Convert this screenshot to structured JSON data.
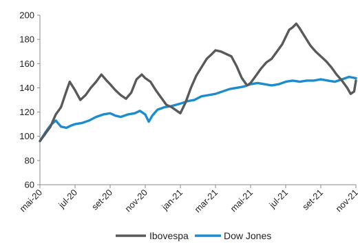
{
  "chart_data": {
    "type": "line",
    "title": "",
    "xlabel": "",
    "ylabel": "",
    "ylim": [
      60,
      200
    ],
    "yticks": [
      "60",
      "80",
      "100",
      "120",
      "140",
      "160",
      "180",
      "200"
    ],
    "xticks": [
      "mai-20",
      "jul-20",
      "set-20",
      "nov-20",
      "jan-21",
      "mar-21",
      "mai-21",
      "jul-21",
      "set-21",
      "nov-21"
    ],
    "grid": false,
    "legend": "bottom",
    "series": [
      {
        "name": "Ibovespa",
        "color": "#595959",
        "points": [
          [
            0,
            96
          ],
          [
            0.15,
            102
          ],
          [
            0.3,
            108
          ],
          [
            0.45,
            118
          ],
          [
            0.6,
            124
          ],
          [
            0.75,
            137
          ],
          [
            0.85,
            145
          ],
          [
            1.0,
            138
          ],
          [
            1.15,
            130
          ],
          [
            1.3,
            134
          ],
          [
            1.45,
            140
          ],
          [
            1.6,
            145
          ],
          [
            1.75,
            151
          ],
          [
            1.9,
            146
          ],
          [
            2.0,
            143
          ],
          [
            2.15,
            138
          ],
          [
            2.3,
            134
          ],
          [
            2.45,
            131
          ],
          [
            2.6,
            136
          ],
          [
            2.75,
            147
          ],
          [
            2.9,
            151
          ],
          [
            3.0,
            148
          ],
          [
            3.15,
            145
          ],
          [
            3.3,
            138
          ],
          [
            3.45,
            132
          ],
          [
            3.6,
            126
          ],
          [
            3.75,
            124
          ],
          [
            3.9,
            121
          ],
          [
            4.0,
            119
          ],
          [
            4.15,
            128
          ],
          [
            4.3,
            140
          ],
          [
            4.45,
            150
          ],
          [
            4.6,
            157
          ],
          [
            4.75,
            164
          ],
          [
            4.9,
            168
          ],
          [
            5.0,
            171
          ],
          [
            5.15,
            170
          ],
          [
            5.3,
            168
          ],
          [
            5.45,
            166
          ],
          [
            5.6,
            158
          ],
          [
            5.75,
            148
          ],
          [
            5.9,
            142
          ],
          [
            6.0,
            144
          ],
          [
            6.15,
            150
          ],
          [
            6.3,
            156
          ],
          [
            6.45,
            161
          ],
          [
            6.6,
            164
          ],
          [
            6.75,
            170
          ],
          [
            6.9,
            176
          ],
          [
            7.0,
            182
          ],
          [
            7.1,
            188
          ],
          [
            7.2,
            190
          ],
          [
            7.3,
            193
          ],
          [
            7.4,
            189
          ],
          [
            7.55,
            182
          ],
          [
            7.7,
            175
          ],
          [
            7.85,
            170
          ],
          [
            8.0,
            166
          ],
          [
            8.15,
            162
          ],
          [
            8.3,
            157
          ],
          [
            8.45,
            151
          ],
          [
            8.6,
            146
          ],
          [
            8.75,
            140
          ],
          [
            8.85,
            135
          ],
          [
            8.95,
            137
          ],
          [
            9.0,
            146
          ]
        ]
      },
      {
        "name": "Dow Jones",
        "color": "#1a8ccf",
        "points": [
          [
            0,
            96
          ],
          [
            0.15,
            103
          ],
          [
            0.3,
            109
          ],
          [
            0.45,
            113
          ],
          [
            0.6,
            108
          ],
          [
            0.75,
            107
          ],
          [
            0.9,
            109
          ],
          [
            1.0,
            110
          ],
          [
            1.2,
            111
          ],
          [
            1.4,
            113
          ],
          [
            1.6,
            116
          ],
          [
            1.8,
            118
          ],
          [
            2.0,
            119
          ],
          [
            2.15,
            117
          ],
          [
            2.3,
            116
          ],
          [
            2.5,
            118
          ],
          [
            2.7,
            119
          ],
          [
            2.85,
            121
          ],
          [
            3.0,
            118
          ],
          [
            3.1,
            112
          ],
          [
            3.2,
            117
          ],
          [
            3.35,
            122
          ],
          [
            3.55,
            124
          ],
          [
            3.75,
            125
          ],
          [
            4.0,
            127
          ],
          [
            4.2,
            129
          ],
          [
            4.4,
            130
          ],
          [
            4.6,
            133
          ],
          [
            4.8,
            134
          ],
          [
            5.0,
            135
          ],
          [
            5.2,
            137
          ],
          [
            5.4,
            139
          ],
          [
            5.6,
            140
          ],
          [
            5.8,
            141
          ],
          [
            6.0,
            143
          ],
          [
            6.2,
            144
          ],
          [
            6.4,
            143
          ],
          [
            6.6,
            142
          ],
          [
            6.8,
            143
          ],
          [
            7.0,
            145
          ],
          [
            7.2,
            146
          ],
          [
            7.4,
            145
          ],
          [
            7.6,
            146
          ],
          [
            7.8,
            146
          ],
          [
            8.0,
            147
          ],
          [
            8.2,
            146
          ],
          [
            8.4,
            145
          ],
          [
            8.6,
            147
          ],
          [
            8.8,
            149
          ],
          [
            9.0,
            148
          ]
        ]
      }
    ]
  }
}
